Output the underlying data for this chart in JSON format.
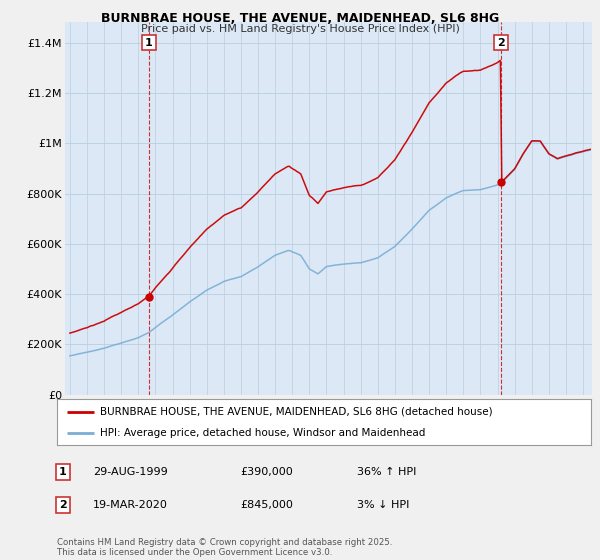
{
  "title1": "BURNBRAE HOUSE, THE AVENUE, MAIDENHEAD, SL6 8HG",
  "title2": "Price paid vs. HM Land Registry's House Price Index (HPI)",
  "legend_line1": "BURNBRAE HOUSE, THE AVENUE, MAIDENHEAD, SL6 8HG (detached house)",
  "legend_line2": "HPI: Average price, detached house, Windsor and Maidenhead",
  "annotation1_label": "1",
  "annotation1_date": "29-AUG-1999",
  "annotation1_price": "£390,000",
  "annotation1_pct": "36% ↑ HPI",
  "annotation2_label": "2",
  "annotation2_date": "19-MAR-2020",
  "annotation2_price": "£845,000",
  "annotation2_pct": "3% ↓ HPI",
  "footer": "Contains HM Land Registry data © Crown copyright and database right 2025.\nThis data is licensed under the Open Government Licence v3.0.",
  "red_color": "#cc0000",
  "blue_color": "#7aaed6",
  "background_color": "#f0f0f0",
  "plot_bg_color": "#dce8f5",
  "ylim": [
    0,
    1450000
  ],
  "yticks": [
    0,
    200000,
    400000,
    600000,
    800000,
    1000000,
    1200000,
    1400000
  ],
  "ytick_labels": [
    "£0",
    "£200K",
    "£400K",
    "£600K",
    "£800K",
    "£1M",
    "£1.2M",
    "£1.4M"
  ],
  "sale1_year": 1999.625,
  "sale1_price": 390000,
  "sale2_year": 2020.21,
  "sale2_price": 845000
}
